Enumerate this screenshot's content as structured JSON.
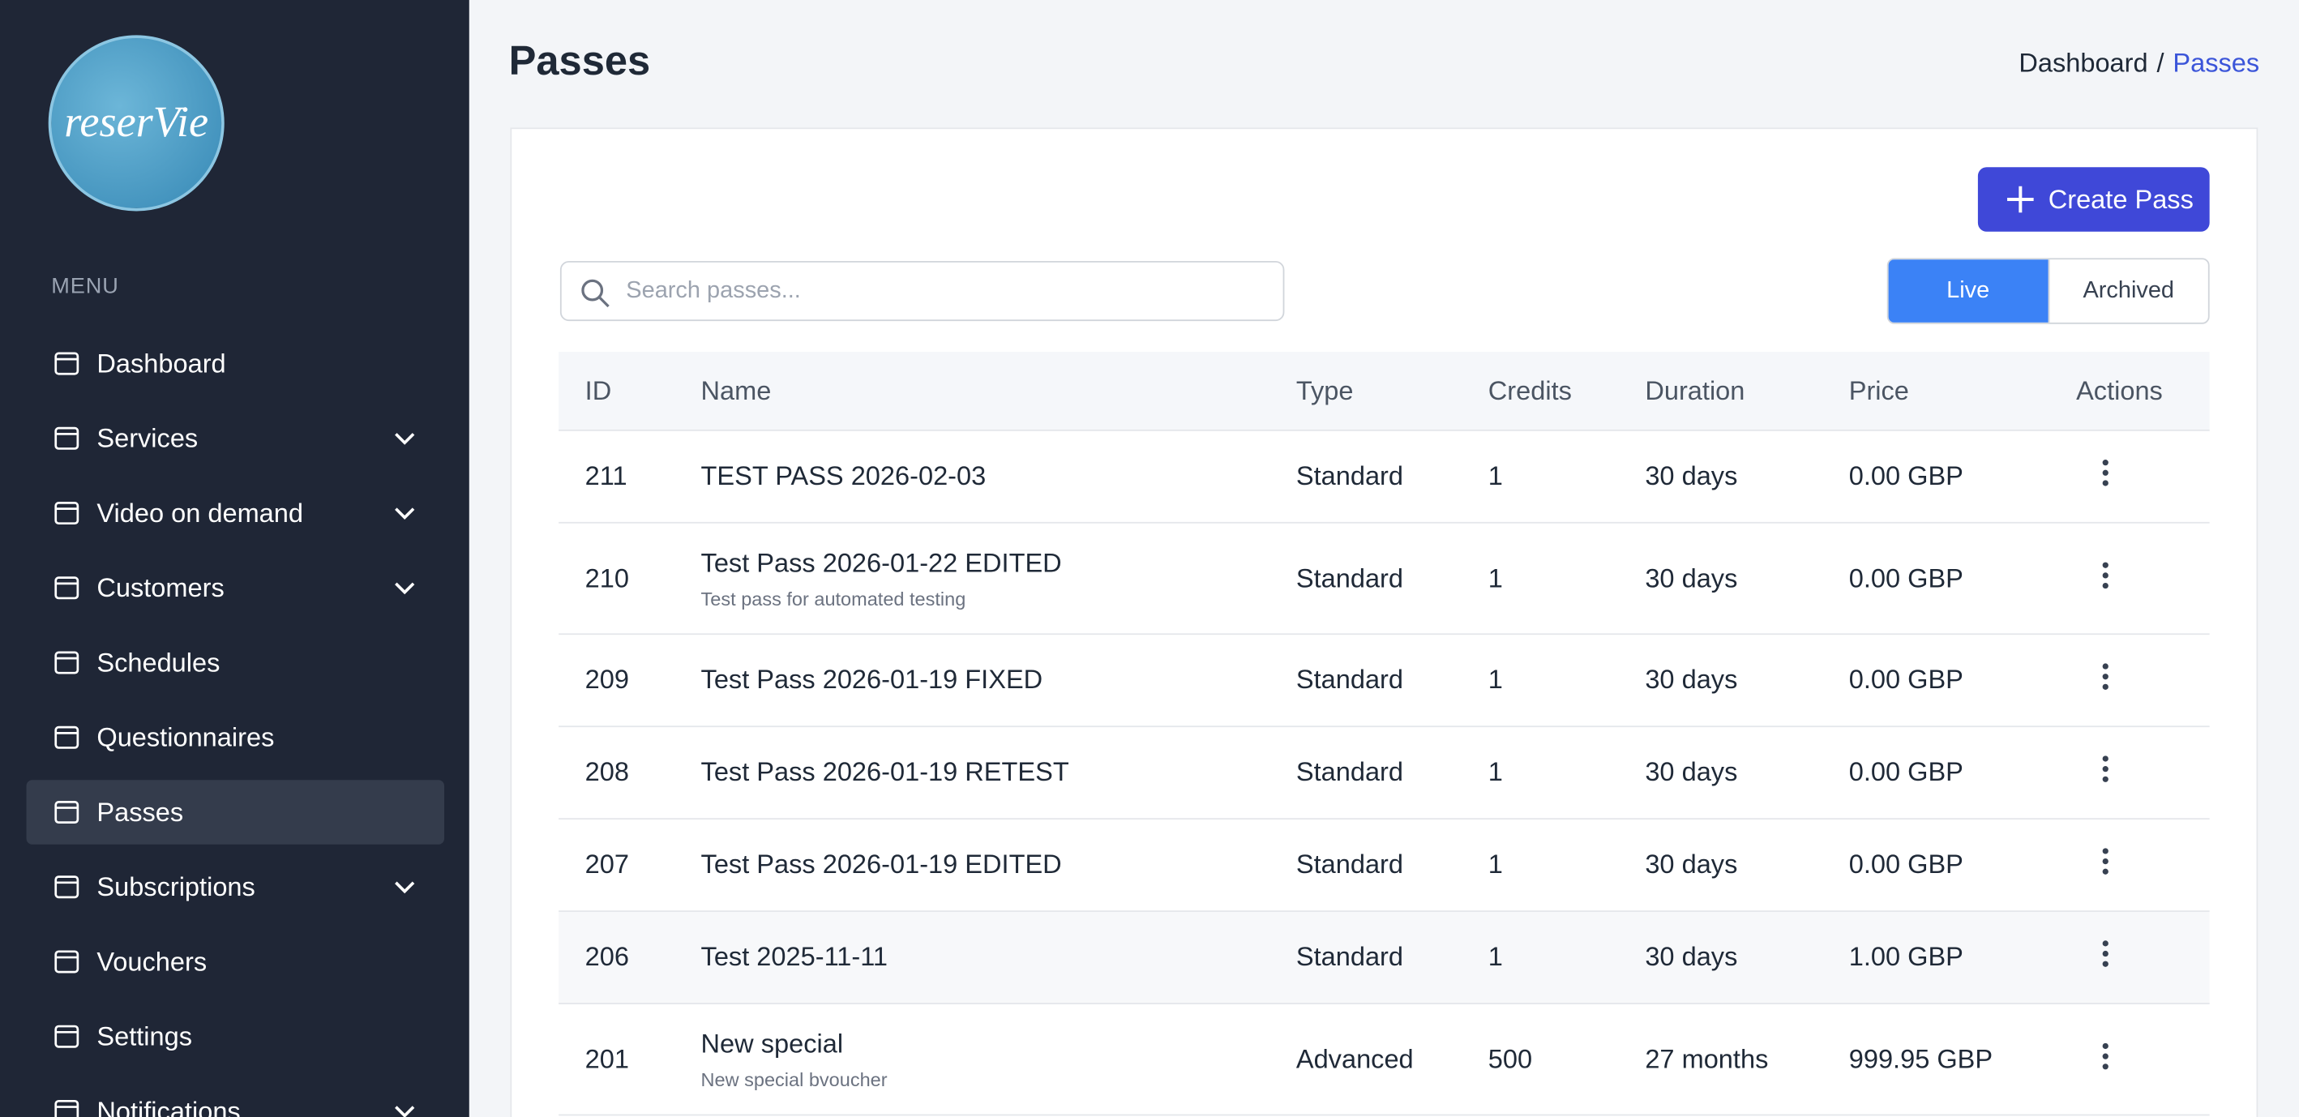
{
  "sidebar": {
    "logo_text": "reserVie",
    "menu_label": "MENU",
    "items": [
      {
        "label": "Dashboard"
      },
      {
        "label": "Services",
        "expandable": true
      },
      {
        "label": "Video on demand",
        "expandable": true
      },
      {
        "label": "Customers",
        "expandable": true
      },
      {
        "label": "Schedules"
      },
      {
        "label": "Questionnaires"
      },
      {
        "label": "Passes",
        "active": true
      },
      {
        "label": "Subscriptions",
        "expandable": true
      },
      {
        "label": "Vouchers"
      },
      {
        "label": "Settings"
      },
      {
        "label": "Notifications",
        "expandable": true
      }
    ]
  },
  "header": {
    "title": "Passes",
    "breadcrumb": {
      "items": [
        "Dashboard",
        "Passes"
      ],
      "separator": "/"
    }
  },
  "toolbar": {
    "create_button": "Create Pass",
    "search_placeholder": "Search passes...",
    "tabs": [
      "Live",
      "Archived"
    ],
    "active_tab": "Live"
  },
  "table": {
    "columns": [
      "ID",
      "Name",
      "Type",
      "Credits",
      "Duration",
      "Price",
      "Actions"
    ],
    "rows": [
      {
        "id": 211,
        "name": "TEST PASS 2026-02-03",
        "type": "Standard",
        "credits": 1,
        "duration": "30 days",
        "price": "0.00 GBP"
      },
      {
        "id": 210,
        "name": "Test Pass 2026-01-22 EDITED",
        "description": "Test pass for automated testing",
        "type": "Standard",
        "credits": 1,
        "duration": "30 days",
        "price": "0.00 GBP"
      },
      {
        "id": 209,
        "name": "Test Pass 2026-01-19 FIXED",
        "type": "Standard",
        "credits": 1,
        "duration": "30 days",
        "price": "0.00 GBP"
      },
      {
        "id": 208,
        "name": "Test Pass 2026-01-19 RETEST",
        "type": "Standard",
        "credits": 1,
        "duration": "30 days",
        "price": "0.00 GBP"
      },
      {
        "id": 207,
        "name": "Test Pass 2026-01-19 EDITED",
        "type": "Standard",
        "credits": 1,
        "duration": "30 days",
        "price": "0.00 GBP"
      },
      {
        "id": 206,
        "name": "Test 2025-11-11",
        "type": "Standard",
        "credits": 1,
        "duration": "30 days",
        "price": "1.00 GBP"
      },
      {
        "id": 201,
        "name": "New special",
        "description": "New special bvoucher",
        "type": "Advanced",
        "credits": 500,
        "duration": "27 months",
        "price": "999.95 GBP"
      }
    ]
  }
}
